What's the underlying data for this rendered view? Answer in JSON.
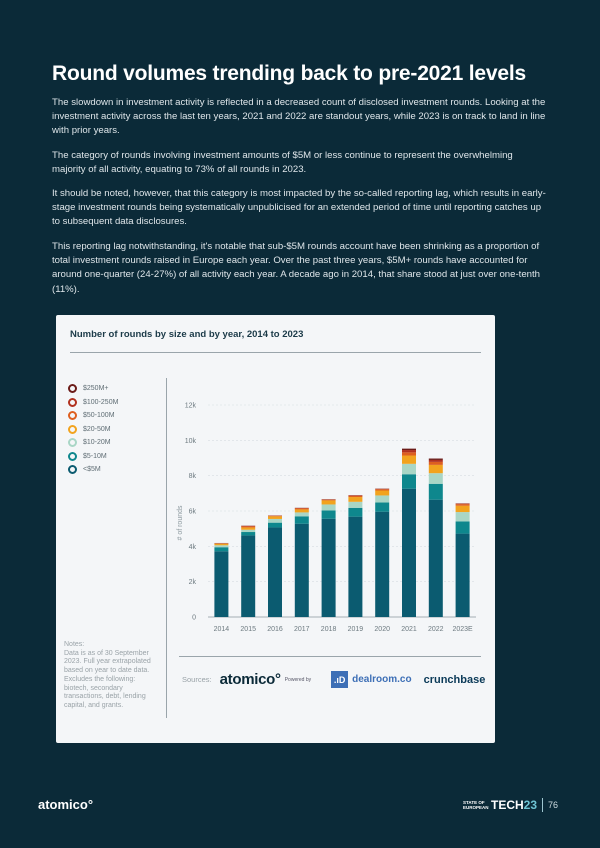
{
  "page": {
    "title": "Round volumes trending back to pre-2021 levels",
    "paragraphs": [
      "The slowdown in investment activity is reflected in a decreased count of disclosed investment rounds. Looking at the investment activity across the last ten years, 2021 and 2022 are standout years, while 2023 is on track to land in line with prior years.",
      "The category of rounds involving investment amounts of $5M or less continue to represent the overwhelming majority of all activity, equating to 73% of all rounds in 2023.",
      "It should be noted, however, that this category is most impacted by the so-called reporting lag, which results in early-stage investment rounds being systematically unpublicised for an extended period of time until reporting catches up to subsequent data disclosures.",
      "This reporting lag notwithstanding, it's notable that sub-$5M rounds account have been shrinking as a proportion of total investment rounds raised in Europe each year. Over the past three years, $5M+ rounds have accounted for around one-quarter (24-27%) of all activity each year. A decade ago in 2014, that share stood at just over one-tenth (11%)."
    ],
    "footer": {
      "logo": "atomico°",
      "brand_small": "STATE OF EUROPEAN",
      "brand_main": "TECH",
      "brand_num": "23",
      "page_number": "76"
    }
  },
  "card": {
    "notes": "Notes:\nData is as of 30 September 2023. Full year extrapolated based on year to date data. Excludes the following: biotech, secondary transactions, debt, lending capital, and grants.",
    "sources_label": "Sources:",
    "source_logos": {
      "atomico": "atomico°",
      "powered_by": "Powered by",
      "dealroom_mark": ".ıD",
      "dealroom": "dealroom.co",
      "crunchbase": "crunchbase"
    }
  },
  "chart_data": {
    "type": "bar",
    "stacked": true,
    "title": "Number of rounds by size and by year, 2014 to 2023",
    "ylabel": "# of rounds",
    "xlabel": "",
    "ylim": [
      0,
      12000
    ],
    "yticks": [
      0,
      2000,
      4000,
      6000,
      8000,
      10000,
      12000
    ],
    "ytick_labels": [
      "0",
      "2k",
      "4k",
      "6k",
      "8k",
      "10k",
      "12k"
    ],
    "grid": true,
    "legend_placement": "left",
    "categories": [
      "2014",
      "2015",
      "2016",
      "2017",
      "2018",
      "2019",
      "2020",
      "2021",
      "2022",
      "2023E"
    ],
    "series": [
      {
        "name": "<$5M",
        "color": "#0b5b70",
        "values": [
          3720,
          4620,
          5070,
          5280,
          5560,
          5680,
          5960,
          7260,
          6640,
          4720
        ]
      },
      {
        "name": "$5-10M",
        "color": "#0e878d",
        "values": [
          230,
          190,
          270,
          420,
          470,
          500,
          520,
          820,
          900,
          690
        ]
      },
      {
        "name": "$10-20M",
        "color": "#a9d6c6",
        "values": [
          110,
          130,
          210,
          220,
          340,
          340,
          400,
          590,
          600,
          530
        ]
      },
      {
        "name": "$20-50M",
        "color": "#f2a31e",
        "values": [
          90,
          130,
          150,
          170,
          230,
          270,
          280,
          470,
          470,
          360
        ]
      },
      {
        "name": "$50-100M",
        "color": "#de5f1f",
        "values": [
          20,
          60,
          30,
          60,
          40,
          70,
          70,
          180,
          170,
          90
        ]
      },
      {
        "name": "$100-250M",
        "color": "#b1311f",
        "values": [
          10,
          30,
          15,
          20,
          20,
          30,
          30,
          130,
          110,
          30
        ]
      },
      {
        "name": "$250M+",
        "color": "#6b1b18",
        "values": [
          10,
          10,
          5,
          10,
          10,
          10,
          10,
          80,
          80,
          10
        ]
      }
    ]
  }
}
